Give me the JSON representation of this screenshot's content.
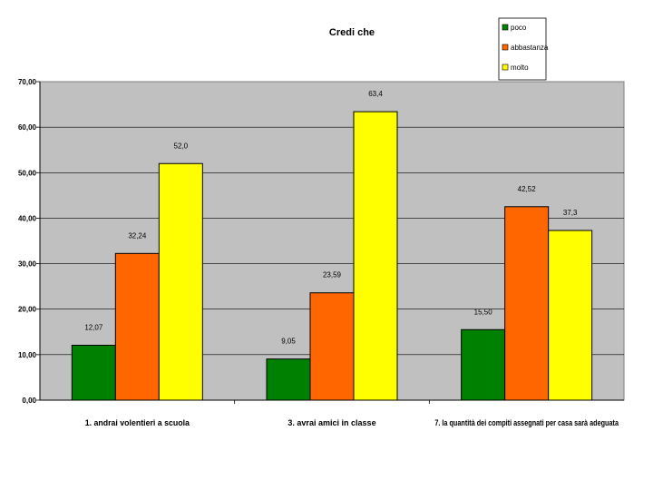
{
  "chart_data": {
    "type": "bar",
    "title": "Credi che",
    "categories": [
      "1.    andrai volentieri a scuola",
      "3.    avrai amici in classe",
      "7.    la quantità dei compiti assegnati per casa sarà adeguata"
    ],
    "series": [
      {
        "name": "poco",
        "color": "#008000",
        "values": [
          12.07,
          9.05,
          15.5
        ],
        "labels": [
          "12,07",
          "9,05",
          "15,50"
        ]
      },
      {
        "name": "abbastanza",
        "color": "#ff6600",
        "values": [
          32.24,
          23.59,
          42.52
        ],
        "labels": [
          "32,24",
          "23,59",
          "42,52"
        ]
      },
      {
        "name": "molto",
        "color": "#ffff00",
        "values": [
          52.0,
          63.4,
          37.3
        ],
        "labels": [
          "52,0",
          "63,4",
          "37,3"
        ]
      }
    ],
    "ylim": [
      0,
      70
    ],
    "yticks": [
      0,
      10,
      20,
      30,
      40,
      50,
      60,
      70
    ],
    "ytick_labels": [
      "0,00",
      "10,00",
      "20,00",
      "30,00",
      "40,00",
      "50,00",
      "60,00",
      "70,00"
    ],
    "grid": true,
    "plot_background": "#c0c0c0",
    "legend_position": "top-right"
  }
}
